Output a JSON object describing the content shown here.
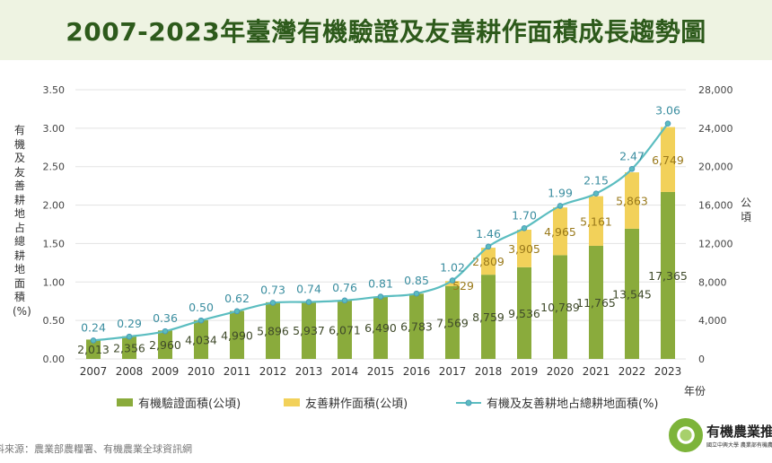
{
  "title": "2007-2023年臺灣有機驗證及友善耕作面積成長趨勢圖",
  "source": "料來源：農業部農糧署、有機農業全球資訊網",
  "logo": {
    "name": "有機農業推動中",
    "subtitle": "國立中興大學 農業部有機農業推動"
  },
  "chart_data": {
    "type": "bar+line",
    "categories": [
      "2007",
      "2008",
      "2009",
      "2010",
      "2011",
      "2012",
      "2013",
      "2014",
      "2015",
      "2016",
      "2017",
      "2018",
      "2019",
      "2020",
      "2021",
      "2022",
      "2023"
    ],
    "xlabel": "年份",
    "ylabel_left": "有機及友善耕地占總耕地面積(%)",
    "ylabel_right": "公頃",
    "ylim_left": [
      0,
      3.5
    ],
    "yticks_left": [
      "0.00",
      "0.50",
      "1.00",
      "1.50",
      "2.00",
      "2.50",
      "3.00",
      "3.50"
    ],
    "ylim_right": [
      0,
      28000
    ],
    "yticks_right": [
      "0",
      "4,000",
      "8,000",
      "12,000",
      "16,000",
      "20,000",
      "24,000",
      "28,000"
    ],
    "grid": true,
    "legend_position": "bottom",
    "series": [
      {
        "name": "有機驗證面積(公頃)",
        "type": "stacked-bar",
        "axis": "right",
        "color": "#8aab3c",
        "values": [
          2013,
          2356,
          2960,
          4034,
          4990,
          5896,
          5937,
          6071,
          6490,
          6783,
          7569,
          8759,
          9536,
          10789,
          11765,
          13545,
          17365
        ],
        "labels": [
          "2,013",
          "2,356",
          "2,960",
          "4,034",
          "4,990",
          "5,896",
          "5,937",
          "6,071",
          "6,490",
          "6,783",
          "7,569",
          "8,759",
          "9,536",
          "10,789",
          "11,765",
          "13,545",
          "17,365"
        ]
      },
      {
        "name": "友善耕作面積(公頃)",
        "type": "stacked-bar",
        "axis": "right",
        "color": "#f2d15a",
        "values": [
          null,
          null,
          null,
          null,
          null,
          null,
          null,
          null,
          null,
          null,
          529,
          2809,
          3905,
          4965,
          5161,
          5863,
          6749
        ],
        "labels": [
          "",
          "",
          "",
          "",
          "",
          "",
          "",
          "",
          "",
          "",
          "529",
          "2,809",
          "3,905",
          "4,965",
          "5,161",
          "5,863",
          "6,749"
        ]
      },
      {
        "name": "有機及友善耕地占總耕地面積(%)",
        "type": "line",
        "axis": "left",
        "color": "#5bbdc0",
        "values": [
          0.24,
          0.29,
          0.36,
          0.5,
          0.62,
          0.73,
          0.74,
          0.76,
          0.81,
          0.85,
          1.02,
          1.46,
          1.7,
          1.99,
          2.15,
          2.47,
          3.06
        ],
        "labels": [
          "0.24",
          "0.29",
          "0.36",
          "0.50",
          "0.62",
          "0.73",
          "0.74",
          "0.76",
          "0.81",
          "0.85",
          "1.02",
          "1.46",
          "1.70",
          "1.99",
          "2.15",
          "2.47",
          "3.06"
        ]
      }
    ]
  }
}
